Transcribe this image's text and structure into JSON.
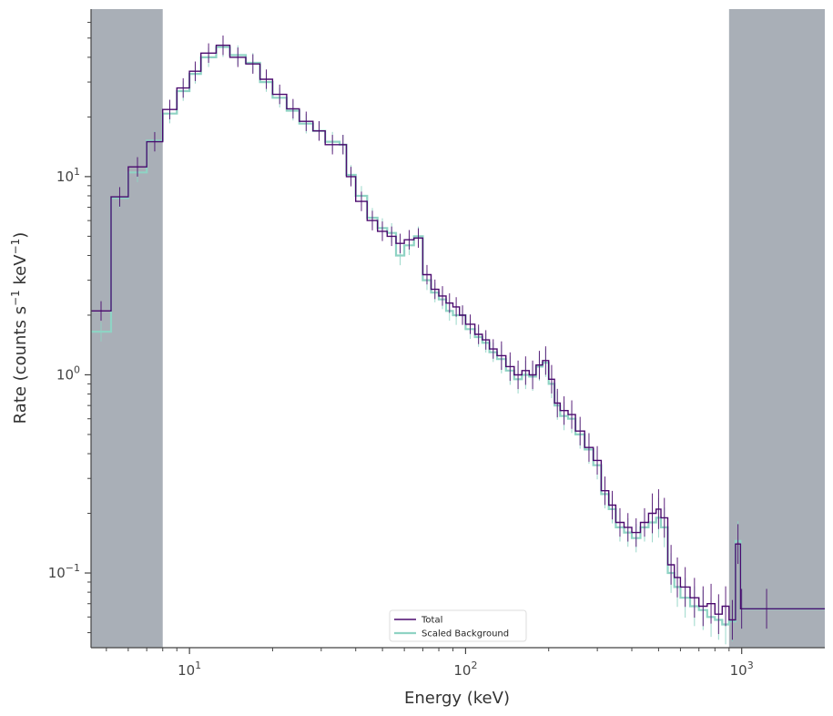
{
  "chart_data": {
    "type": "line",
    "xlabel": "Energy (keV)",
    "ylabel_parts": [
      "Rate (counts s",
      "−1",
      " keV",
      "−1",
      ")"
    ],
    "x_scale": "log",
    "y_scale": "log",
    "xlim": [
      4.4,
      2000
    ],
    "ylim": [
      0.042,
      70
    ],
    "x_ticks": [
      {
        "value": 10,
        "base": "10",
        "exp": "1"
      },
      {
        "value": 100,
        "base": "10",
        "exp": "2"
      },
      {
        "value": 1000,
        "base": "10",
        "exp": "3"
      }
    ],
    "y_ticks": [
      {
        "value": 0.1,
        "base": "10",
        "exp": "−1"
      },
      {
        "value": 1,
        "base": "10",
        "exp": "0"
      },
      {
        "value": 10,
        "base": "10",
        "exp": "1"
      }
    ],
    "grid": false,
    "legend_position": "bottom-center",
    "shaded_ranges": [
      [
        4.4,
        8.0
      ],
      [
        900,
        2000
      ]
    ],
    "shade_color": "#a9afb7",
    "series": [
      {
        "name": "Total",
        "color": "#4b0a6e",
        "x": [
          4.4,
          5.2,
          6.0,
          7.0,
          8.0,
          9.0,
          10.0,
          11.0,
          12.5,
          14.0,
          16.0,
          18.0,
          20.0,
          22.5,
          25.0,
          28.0,
          31.0,
          35.0,
          37.0,
          40.0,
          44.0,
          48.0,
          52.0,
          56.0,
          60.0,
          65.0,
          70.0,
          75.0,
          80.0,
          85.0,
          90.0,
          95.0,
          100.0,
          108.0,
          115.0,
          122.0,
          130.0,
          140.0,
          150.0,
          160.0,
          170.0,
          180.0,
          190.0,
          200.0,
          210.0,
          220.0,
          235.0,
          250.0,
          270.0,
          290.0,
          310.0,
          330.0,
          350.0,
          375.0,
          400.0,
          430.0,
          460.0,
          490.0,
          510.0,
          540.0,
          570.0,
          600.0,
          650.0,
          700.0,
          750.0,
          800.0,
          850.0,
          900.0,
          950.0,
          990.0,
          1010.0,
          1500.0
        ],
        "y": [
          2.1,
          7.9,
          11.2,
          15.0,
          21.8,
          28.0,
          34.0,
          42.0,
          46.0,
          40.0,
          37.0,
          31.0,
          26.0,
          22.0,
          19.0,
          17.0,
          14.5,
          14.5,
          10.0,
          7.5,
          6.0,
          5.3,
          5.0,
          4.6,
          4.8,
          4.9,
          3.2,
          2.7,
          2.5,
          2.3,
          2.2,
          2.0,
          1.8,
          1.6,
          1.5,
          1.35,
          1.25,
          1.1,
          1.0,
          1.05,
          1.0,
          1.12,
          1.18,
          0.95,
          0.72,
          0.66,
          0.63,
          0.52,
          0.43,
          0.37,
          0.26,
          0.22,
          0.18,
          0.17,
          0.16,
          0.18,
          0.2,
          0.21,
          0.19,
          0.11,
          0.095,
          0.085,
          0.075,
          0.068,
          0.07,
          0.062,
          0.068,
          0.058,
          0.14,
          0.066,
          0.066,
          0.066
        ]
      },
      {
        "name": "Scaled  Background",
        "color": "#8fd3c4",
        "x": [
          4.4,
          5.2,
          6.0,
          7.0,
          8.0,
          9.0,
          10.0,
          11.0,
          12.5,
          14.0,
          16.0,
          18.0,
          20.0,
          22.5,
          25.0,
          28.0,
          31.0,
          35.0,
          37.0,
          40.0,
          44.0,
          48.0,
          52.0,
          56.0,
          60.0,
          65.0,
          70.0,
          75.0,
          80.0,
          85.0,
          90.0,
          95.0,
          100.0,
          108.0,
          115.0,
          122.0,
          130.0,
          140.0,
          150.0,
          160.0,
          170.0,
          180.0,
          190.0,
          200.0,
          210.0,
          220.0,
          235.0,
          250.0,
          270.0,
          290.0,
          310.0,
          330.0,
          350.0,
          375.0,
          400.0,
          430.0,
          460.0,
          490.0,
          510.0,
          540.0,
          570.0,
          600.0,
          650.0,
          700.0,
          750.0,
          800.0,
          850.0,
          900.0,
          950.0,
          990.0,
          1010.0,
          1500.0
        ],
        "y": [
          1.65,
          7.8,
          10.5,
          15.2,
          20.8,
          27.0,
          33.0,
          40.0,
          45.0,
          41.0,
          37.5,
          30.0,
          25.0,
          21.5,
          18.5,
          17.0,
          15.0,
          14.5,
          10.2,
          8.0,
          6.2,
          5.5,
          5.2,
          4.0,
          4.5,
          5.0,
          3.0,
          2.6,
          2.4,
          2.1,
          2.0,
          2.0,
          1.7,
          1.55,
          1.45,
          1.3,
          1.2,
          1.05,
          0.95,
          1.0,
          0.98,
          1.1,
          1.15,
          0.9,
          0.7,
          0.62,
          0.6,
          0.5,
          0.42,
          0.35,
          0.25,
          0.21,
          0.17,
          0.16,
          0.15,
          0.17,
          0.18,
          0.19,
          0.17,
          0.1,
          0.085,
          0.075,
          0.068,
          0.065,
          0.06,
          0.058,
          0.055,
          0.057,
          0.145,
          0.066,
          0.066,
          0.066
        ]
      }
    ]
  }
}
